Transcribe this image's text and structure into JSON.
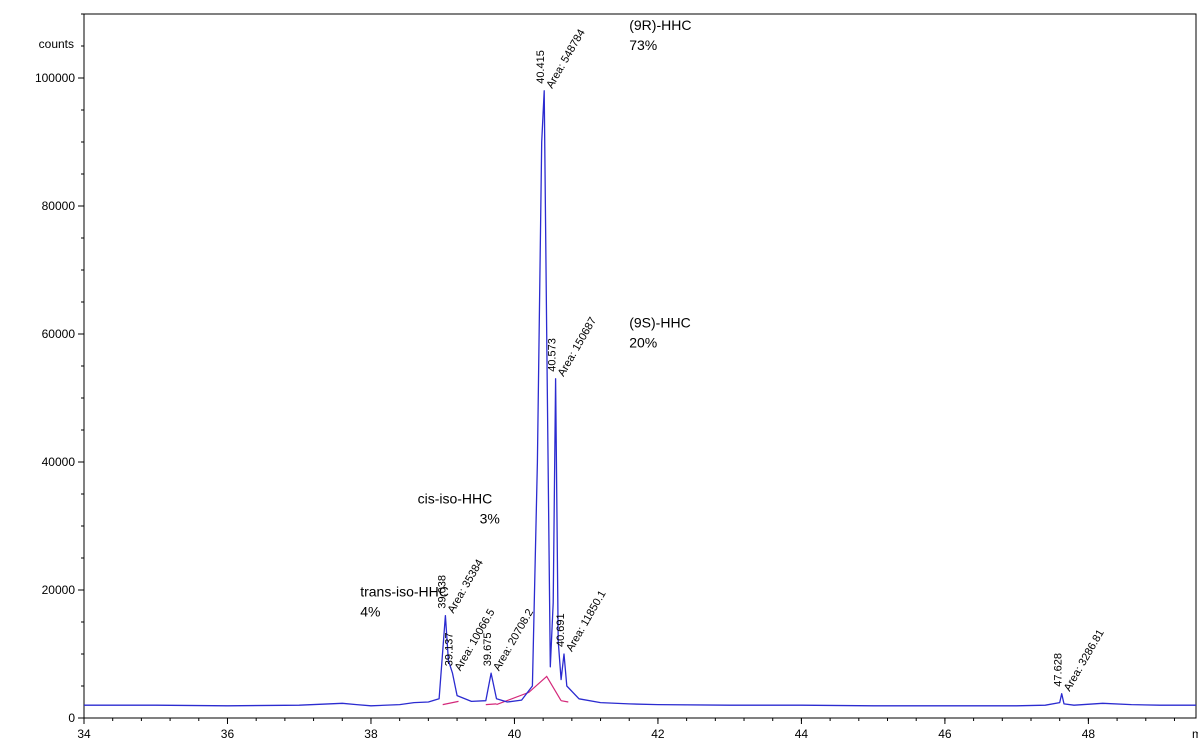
{
  "chart_data": {
    "type": "line",
    "ylabel": "counts",
    "xlabel": "mi",
    "xlim": [
      34,
      49.5
    ],
    "ylim": [
      0,
      110000
    ],
    "x_ticks": [
      "34",
      "36",
      "38",
      "40",
      "42",
      "44",
      "46",
      "48"
    ],
    "y_ticks": [
      "0",
      "20000",
      "40000",
      "60000",
      "80000",
      "100000"
    ],
    "x_tick_values": [
      34,
      36,
      38,
      40,
      42,
      44,
      46,
      48
    ],
    "y_tick_values": [
      0,
      20000,
      40000,
      60000,
      80000,
      100000
    ],
    "grid": false,
    "colors": {
      "signal": "#2b2bd0",
      "baseline": "#d4287a",
      "axis": "#000000"
    },
    "series": [
      {
        "values_x": [
          34.0,
          35.0,
          36.0,
          37.0,
          37.6,
          37.8,
          38.0,
          38.4,
          38.6,
          38.8,
          38.95,
          39.038,
          39.08,
          39.137,
          39.2,
          39.4,
          39.6,
          39.675,
          39.75,
          39.9,
          40.1,
          40.25,
          40.32,
          40.38,
          40.415,
          40.45,
          40.5,
          40.54,
          40.573,
          40.61,
          40.65,
          40.691,
          40.73,
          40.9,
          41.2,
          41.6,
          42.0,
          43.0,
          44.0,
          45.0,
          46.0,
          47.0,
          47.4,
          47.6,
          47.628,
          47.66,
          47.8,
          48.2,
          48.6,
          49.0,
          49.5
        ],
        "values_y": [
          2000,
          2000,
          1900,
          2000,
          2300,
          2100,
          1900,
          2100,
          2400,
          2500,
          3000,
          16000,
          9000,
          7000,
          3500,
          2600,
          2700,
          7000,
          3000,
          2500,
          2800,
          5000,
          40000,
          90000,
          98000,
          60000,
          8000,
          18000,
          53000,
          12000,
          6000,
          10000,
          5000,
          3000,
          2400,
          2200,
          2100,
          2000,
          2000,
          1900,
          1900,
          1900,
          2000,
          2400,
          3800,
          2200,
          2000,
          2300,
          2100,
          2000,
          2000
        ]
      }
    ],
    "baselines": [
      {
        "x": [
          39.0,
          39.22
        ],
        "y": [
          2100,
          2600
        ]
      },
      {
        "x": [
          39.6,
          39.75
        ],
        "y": [
          2100,
          2200
        ]
      },
      {
        "x": [
          39.75,
          40.2,
          40.45,
          40.65
        ],
        "y": [
          2100,
          4000,
          6500,
          2700
        ]
      },
      {
        "x": [
          40.65,
          40.75
        ],
        "y": [
          2700,
          2500
        ]
      }
    ],
    "peak_labels": [
      {
        "x": 39.038,
        "y": 16000,
        "rt": "39.038",
        "area": "Area: 35384"
      },
      {
        "x": 39.137,
        "y": 7000,
        "rt": "39.137",
        "area": "Area: 10066.5"
      },
      {
        "x": 39.675,
        "y": 7000,
        "rt": "39.675",
        "area": "Area: 20708.2"
      },
      {
        "x": 40.415,
        "y": 98000,
        "rt": "40.415",
        "area": "Area: 548784"
      },
      {
        "x": 40.573,
        "y": 53000,
        "rt": "40.573",
        "area": "Area: 150687"
      },
      {
        "x": 40.691,
        "y": 10000,
        "rt": "40.691",
        "area": "Area: 11850.1"
      },
      {
        "x": 47.628,
        "y": 3800,
        "rt": "47.628",
        "area": "Area: 3286.81"
      }
    ],
    "compound_labels": [
      {
        "name": "trans-iso-HHC",
        "pct": "4%",
        "x": 37.85,
        "y": 19000
      },
      {
        "name": "cis-iso-HHC",
        "pct": "3%",
        "x": 38.65,
        "y": 33500
      },
      {
        "name": "(9R)-HHC",
        "pct": "73%",
        "x": 41.6,
        "y": 107500
      },
      {
        "name": "(9S)-HHC",
        "pct": "20%",
        "x": 41.6,
        "y": 61000
      }
    ]
  }
}
